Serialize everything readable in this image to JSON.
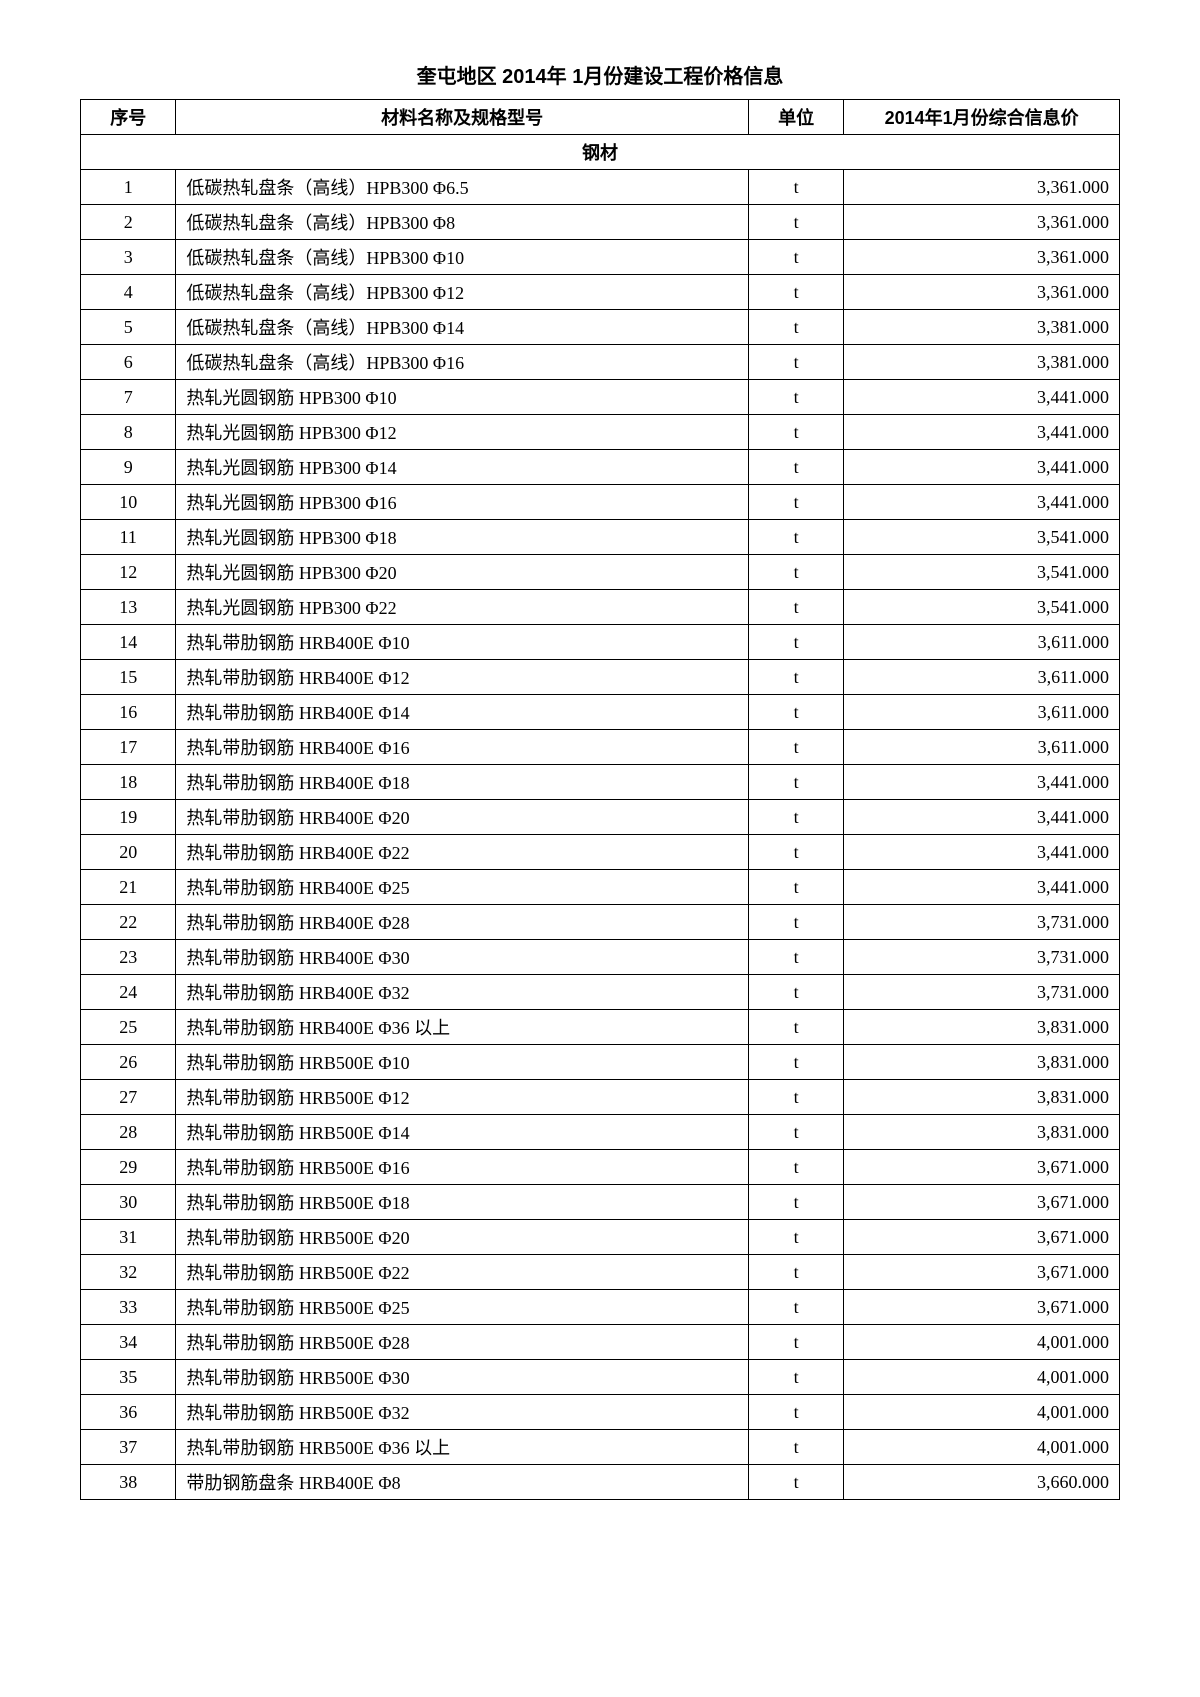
{
  "title": "奎屯地区 2014年 1月份建设工程价格信息",
  "headers": {
    "seq": "序号",
    "name": "材料名称及规格型号",
    "unit": "单位",
    "price": "2014年1月份综合信息价"
  },
  "section": "钢材",
  "rows": [
    {
      "seq": "1",
      "name": "低碳热轧盘条（高线）HPB300 Φ6.5",
      "unit": "t",
      "price": "3,361.000"
    },
    {
      "seq": "2",
      "name": "低碳热轧盘条（高线）HPB300 Φ8",
      "unit": "t",
      "price": "3,361.000"
    },
    {
      "seq": "3",
      "name": "低碳热轧盘条（高线）HPB300 Φ10",
      "unit": "t",
      "price": "3,361.000"
    },
    {
      "seq": "4",
      "name": "低碳热轧盘条（高线）HPB300 Φ12",
      "unit": "t",
      "price": "3,361.000"
    },
    {
      "seq": "5",
      "name": "低碳热轧盘条（高线）HPB300 Φ14",
      "unit": "t",
      "price": "3,381.000"
    },
    {
      "seq": "6",
      "name": "低碳热轧盘条（高线）HPB300 Φ16",
      "unit": "t",
      "price": "3,381.000"
    },
    {
      "seq": "7",
      "name": "热轧光圆钢筋 HPB300 Φ10",
      "unit": "t",
      "price": "3,441.000"
    },
    {
      "seq": "8",
      "name": "热轧光圆钢筋 HPB300 Φ12",
      "unit": "t",
      "price": "3,441.000"
    },
    {
      "seq": "9",
      "name": "热轧光圆钢筋 HPB300 Φ14",
      "unit": "t",
      "price": "3,441.000"
    },
    {
      "seq": "10",
      "name": "热轧光圆钢筋 HPB300 Φ16",
      "unit": "t",
      "price": "3,441.000"
    },
    {
      "seq": "11",
      "name": "热轧光圆钢筋 HPB300 Φ18",
      "unit": "t",
      "price": "3,541.000"
    },
    {
      "seq": "12",
      "name": "热轧光圆钢筋 HPB300 Φ20",
      "unit": "t",
      "price": "3,541.000"
    },
    {
      "seq": "13",
      "name": "热轧光圆钢筋 HPB300 Φ22",
      "unit": "t",
      "price": "3,541.000"
    },
    {
      "seq": "14",
      "name": "热轧带肋钢筋 HRB400E Φ10",
      "unit": "t",
      "price": "3,611.000"
    },
    {
      "seq": "15",
      "name": "热轧带肋钢筋 HRB400E Φ12",
      "unit": "t",
      "price": "3,611.000"
    },
    {
      "seq": "16",
      "name": "热轧带肋钢筋 HRB400E Φ14",
      "unit": "t",
      "price": "3,611.000"
    },
    {
      "seq": "17",
      "name": "热轧带肋钢筋 HRB400E Φ16",
      "unit": "t",
      "price": "3,611.000"
    },
    {
      "seq": "18",
      "name": "热轧带肋钢筋 HRB400E Φ18",
      "unit": "t",
      "price": "3,441.000"
    },
    {
      "seq": "19",
      "name": "热轧带肋钢筋 HRB400E Φ20",
      "unit": "t",
      "price": "3,441.000"
    },
    {
      "seq": "20",
      "name": "热轧带肋钢筋 HRB400E Φ22",
      "unit": "t",
      "price": "3,441.000"
    },
    {
      "seq": "21",
      "name": "热轧带肋钢筋 HRB400E Φ25",
      "unit": "t",
      "price": "3,441.000"
    },
    {
      "seq": "22",
      "name": "热轧带肋钢筋 HRB400E Φ28",
      "unit": "t",
      "price": "3,731.000"
    },
    {
      "seq": "23",
      "name": "热轧带肋钢筋 HRB400E Φ30",
      "unit": "t",
      "price": "3,731.000"
    },
    {
      "seq": "24",
      "name": "热轧带肋钢筋 HRB400E Φ32",
      "unit": "t",
      "price": "3,731.000"
    },
    {
      "seq": "25",
      "name": "热轧带肋钢筋 HRB400E Φ36 以上",
      "unit": "t",
      "price": "3,831.000"
    },
    {
      "seq": "26",
      "name": "热轧带肋钢筋 HRB500E Φ10",
      "unit": "t",
      "price": "3,831.000"
    },
    {
      "seq": "27",
      "name": "热轧带肋钢筋 HRB500E Φ12",
      "unit": "t",
      "price": "3,831.000"
    },
    {
      "seq": "28",
      "name": "热轧带肋钢筋 HRB500E Φ14",
      "unit": "t",
      "price": "3,831.000"
    },
    {
      "seq": "29",
      "name": "热轧带肋钢筋 HRB500E Φ16",
      "unit": "t",
      "price": "3,671.000"
    },
    {
      "seq": "30",
      "name": "热轧带肋钢筋 HRB500E Φ18",
      "unit": "t",
      "price": "3,671.000"
    },
    {
      "seq": "31",
      "name": "热轧带肋钢筋 HRB500E Φ20",
      "unit": "t",
      "price": "3,671.000"
    },
    {
      "seq": "32",
      "name": "热轧带肋钢筋 HRB500E Φ22",
      "unit": "t",
      "price": "3,671.000"
    },
    {
      "seq": "33",
      "name": "热轧带肋钢筋 HRB500E Φ25",
      "unit": "t",
      "price": "3,671.000"
    },
    {
      "seq": "34",
      "name": "热轧带肋钢筋 HRB500E Φ28",
      "unit": "t",
      "price": "4,001.000"
    },
    {
      "seq": "35",
      "name": "热轧带肋钢筋 HRB500E Φ30",
      "unit": "t",
      "price": "4,001.000"
    },
    {
      "seq": "36",
      "name": "热轧带肋钢筋 HRB500E Φ32",
      "unit": "t",
      "price": "4,001.000"
    },
    {
      "seq": "37",
      "name": "热轧带肋钢筋 HRB500E Φ36 以上",
      "unit": "t",
      "price": "4,001.000"
    },
    {
      "seq": "38",
      "name": "带肋钢筋盘条 HRB400E Φ8",
      "unit": "t",
      "price": "3,660.000"
    }
  ]
}
